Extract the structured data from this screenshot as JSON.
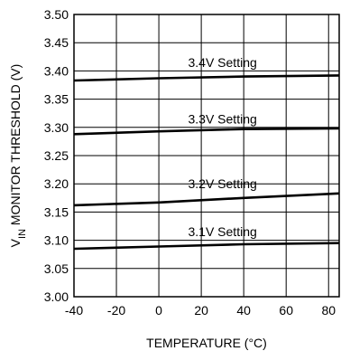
{
  "chart_data": {
    "type": "line",
    "title": "",
    "xlabel": "TEMPERATURE (°C)",
    "ylabel_main": "V",
    "ylabel_sub": "IN",
    "ylabel_rest": " MONITOR THRESHOLD (V)",
    "xlim": [
      -40,
      85
    ],
    "ylim": [
      3.0,
      3.5
    ],
    "x_ticks": [
      -40,
      -20,
      0,
      20,
      40,
      60,
      80
    ],
    "y_ticks": [
      3.0,
      3.05,
      3.1,
      3.15,
      3.2,
      3.25,
      3.3,
      3.35,
      3.4,
      3.45,
      3.5
    ],
    "x_tick_labels": [
      "-40",
      "-20",
      "0",
      "20",
      "40",
      "60",
      "80"
    ],
    "y_tick_labels": [
      "3.00",
      "3.05",
      "3.10",
      "3.15",
      "3.20",
      "3.25",
      "3.30",
      "3.35",
      "3.40",
      "3.45",
      "3.50"
    ],
    "grid": true,
    "series": [
      {
        "name": "3.4V Setting",
        "label_at": [
          30,
          3.415
        ],
        "points": [
          [
            -40,
            3.383
          ],
          [
            0,
            3.387
          ],
          [
            40,
            3.39
          ],
          [
            85,
            3.392
          ]
        ]
      },
      {
        "name": "3.3V Setting",
        "label_at": [
          30,
          3.315
        ],
        "points": [
          [
            -40,
            3.288
          ],
          [
            0,
            3.293
          ],
          [
            40,
            3.297
          ],
          [
            85,
            3.298
          ]
        ]
      },
      {
        "name": "3.2V Setting",
        "label_at": [
          30,
          3.2
        ],
        "points": [
          [
            -40,
            3.162
          ],
          [
            0,
            3.167
          ],
          [
            40,
            3.175
          ],
          [
            85,
            3.183
          ]
        ]
      },
      {
        "name": "3.1V Setting",
        "label_at": [
          30,
          3.115
        ],
        "points": [
          [
            -40,
            3.085
          ],
          [
            0,
            3.089
          ],
          [
            40,
            3.093
          ],
          [
            85,
            3.095
          ]
        ]
      }
    ]
  }
}
